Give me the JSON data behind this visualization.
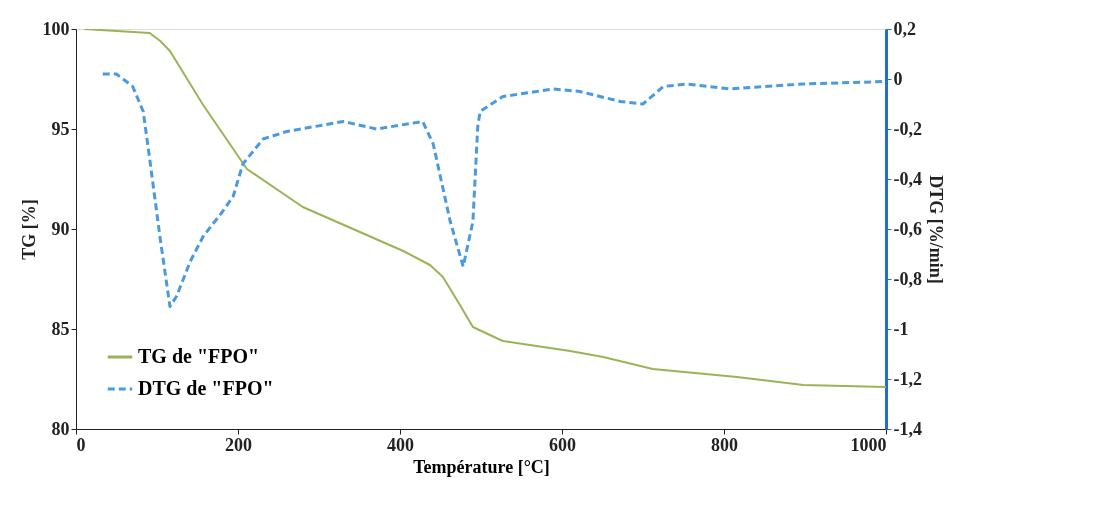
{
  "chart_data": {
    "type": "line",
    "xlabel": "Température [°C]",
    "ylabel": "TG [%]",
    "y2label": "DTG [%/min]",
    "xlim": [
      0,
      1000
    ],
    "xticks": [
      0,
      200,
      400,
      600,
      800,
      1000
    ],
    "ylim": [
      80,
      100
    ],
    "yticks": [
      80,
      85,
      90,
      95,
      100
    ],
    "y2lim": [
      -1.4,
      0.2
    ],
    "y2ticks": [
      {
        "value": -1.4,
        "label": "-1,4"
      },
      {
        "value": -1.2,
        "label": "-1,2"
      },
      -1,
      {
        "value": -0.8,
        "label": "-0,8"
      },
      {
        "value": -0.6,
        "label": "-0,6"
      },
      {
        "value": -0.4,
        "label": "-0,4"
      },
      {
        "value": -0.2,
        "label": "-0,2"
      },
      0,
      {
        "value": 0.2,
        "label": "0,2"
      }
    ],
    "grid": false,
    "legend": "bottom left",
    "marker": "none",
    "series": [
      {
        "name": "TG de \"FPO\"",
        "color": "#9bb357",
        "line_style": "solid",
        "x": [
          10,
          91,
          104,
          116,
          157,
          211,
          280,
          342,
          404,
          437,
          453,
          474,
          490,
          511,
          527,
          610,
          651,
          712,
          816,
          898,
          1000
        ],
        "values": [
          100,
          99.8,
          99.4,
          98.9,
          96.2,
          93.0,
          91.1,
          90.0,
          88.9,
          88.2,
          87.6,
          86.2,
          85.1,
          84.7,
          84.4,
          83.9,
          83.6,
          83.0,
          82.6,
          82.2,
          82.1
        ]
      },
      {
        "name": "DTG de \"FPO\"",
        "color": "#4a9ae0",
        "line_style": "dashed",
        "axis": "y2",
        "x": [
          33,
          50,
          70,
          83,
          91,
          104,
          116,
          124,
          141,
          157,
          181,
          194,
          206,
          231,
          260,
          330,
          371,
          428,
          441,
          462,
          478,
          490,
          496,
          499,
          527,
          589,
          622,
          672,
          700,
          725,
          754,
          807,
          898,
          1000
        ],
        "values": [
          0.02,
          0.02,
          -0.03,
          -0.13,
          -0.32,
          -0.64,
          -0.91,
          -0.87,
          -0.73,
          -0.63,
          -0.53,
          -0.47,
          -0.34,
          -0.24,
          -0.21,
          -0.17,
          -0.2,
          -0.17,
          -0.26,
          -0.57,
          -0.75,
          -0.57,
          -0.19,
          -0.13,
          -0.07,
          -0.04,
          -0.05,
          -0.09,
          -0.1,
          -0.03,
          -0.02,
          -0.04,
          -0.02,
          -0.01
        ]
      }
    ]
  }
}
